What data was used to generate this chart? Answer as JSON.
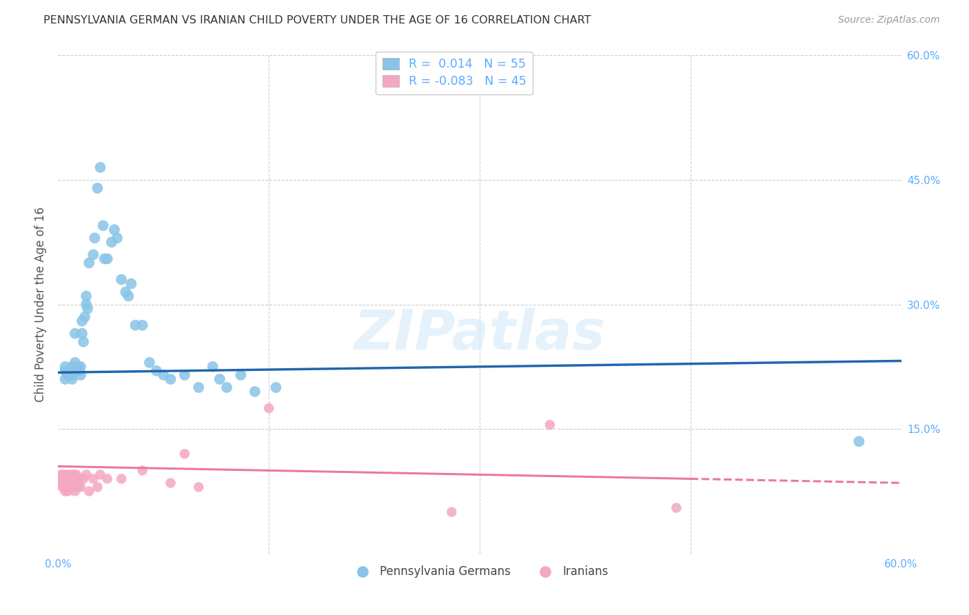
{
  "title": "PENNSYLVANIA GERMAN VS IRANIAN CHILD POVERTY UNDER THE AGE OF 16 CORRELATION CHART",
  "source": "Source: ZipAtlas.com",
  "ylabel": "Child Poverty Under the Age of 16",
  "xlim": [
    0,
    0.6
  ],
  "ylim": [
    0,
    0.6
  ],
  "r_german": "0.014",
  "n_german": "55",
  "r_iranian": "-0.083",
  "n_iranian": "45",
  "blue_scatter_color": "#89c4e8",
  "pink_scatter_color": "#f4a8c0",
  "blue_line_color": "#2166ac",
  "pink_line_color": "#e8799a",
  "background_color": "#ffffff",
  "grid_color": "#cccccc",
  "title_color": "#333333",
  "axis_label_color": "#555555",
  "tick_color": "#5aabff",
  "watermark": "ZIPatlas",
  "german_x": [
    0.005,
    0.005,
    0.005,
    0.007,
    0.008,
    0.008,
    0.009,
    0.01,
    0.01,
    0.01,
    0.012,
    0.012,
    0.013,
    0.013,
    0.014,
    0.015,
    0.016,
    0.016,
    0.017,
    0.017,
    0.018,
    0.019,
    0.02,
    0.02,
    0.021,
    0.022,
    0.025,
    0.026,
    0.028,
    0.03,
    0.032,
    0.033,
    0.035,
    0.038,
    0.04,
    0.042,
    0.045,
    0.048,
    0.05,
    0.052,
    0.055,
    0.06,
    0.065,
    0.07,
    0.075,
    0.08,
    0.09,
    0.1,
    0.11,
    0.115,
    0.12,
    0.13,
    0.14,
    0.155,
    0.57
  ],
  "german_y": [
    0.21,
    0.225,
    0.22,
    0.215,
    0.22,
    0.215,
    0.22,
    0.21,
    0.215,
    0.225,
    0.23,
    0.265,
    0.225,
    0.22,
    0.225,
    0.22,
    0.225,
    0.215,
    0.28,
    0.265,
    0.255,
    0.285,
    0.3,
    0.31,
    0.295,
    0.35,
    0.36,
    0.38,
    0.44,
    0.465,
    0.395,
    0.355,
    0.355,
    0.375,
    0.39,
    0.38,
    0.33,
    0.315,
    0.31,
    0.325,
    0.275,
    0.275,
    0.23,
    0.22,
    0.215,
    0.21,
    0.215,
    0.2,
    0.225,
    0.21,
    0.2,
    0.215,
    0.195,
    0.2,
    0.135
  ],
  "iranian_x": [
    0.001,
    0.002,
    0.002,
    0.003,
    0.003,
    0.004,
    0.004,
    0.005,
    0.005,
    0.005,
    0.006,
    0.006,
    0.007,
    0.007,
    0.008,
    0.008,
    0.009,
    0.009,
    0.01,
    0.01,
    0.011,
    0.011,
    0.012,
    0.012,
    0.013,
    0.013,
    0.014,
    0.015,
    0.016,
    0.018,
    0.02,
    0.022,
    0.025,
    0.028,
    0.03,
    0.035,
    0.045,
    0.06,
    0.08,
    0.09,
    0.1,
    0.15,
    0.28,
    0.35,
    0.44
  ],
  "iranian_y": [
    0.09,
    0.085,
    0.095,
    0.08,
    0.09,
    0.085,
    0.095,
    0.075,
    0.08,
    0.09,
    0.08,
    0.095,
    0.075,
    0.09,
    0.08,
    0.095,
    0.08,
    0.09,
    0.085,
    0.095,
    0.08,
    0.095,
    0.075,
    0.09,
    0.08,
    0.095,
    0.08,
    0.09,
    0.08,
    0.09,
    0.095,
    0.075,
    0.09,
    0.08,
    0.095,
    0.09,
    0.09,
    0.1,
    0.085,
    0.12,
    0.08,
    0.175,
    0.05,
    0.155,
    0.055
  ]
}
